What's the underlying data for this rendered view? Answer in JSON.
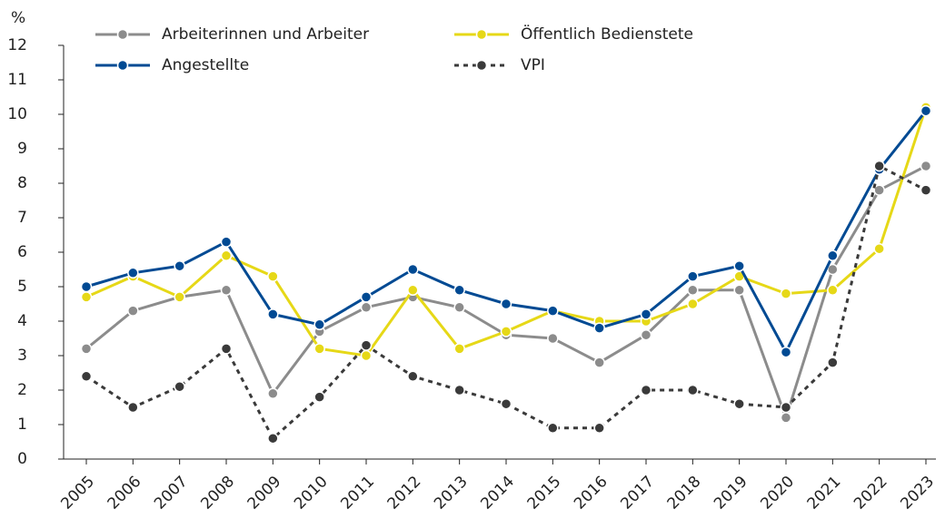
{
  "chart_data": {
    "type": "line",
    "y_unit": "%",
    "categories": [
      "2005",
      "2006",
      "2007",
      "2008",
      "2009",
      "2010",
      "2011",
      "2012",
      "2013",
      "2014",
      "2015",
      "2016",
      "2017",
      "2018",
      "2019",
      "2020",
      "2021",
      "2022",
      "2023"
    ],
    "series": [
      {
        "name": "Arbeiterinnen und Arbeiter",
        "color": "#8c8c8c",
        "dashed": false,
        "values": [
          3.2,
          4.3,
          4.7,
          4.9,
          1.9,
          3.7,
          4.4,
          4.7,
          4.4,
          3.6,
          3.5,
          2.8,
          3.6,
          4.9,
          4.9,
          1.2,
          5.5,
          7.8,
          8.5
        ]
      },
      {
        "name": "Angestellte",
        "color": "#004a93",
        "dashed": false,
        "values": [
          5.0,
          5.4,
          5.6,
          6.3,
          4.2,
          3.9,
          4.7,
          5.5,
          4.9,
          4.5,
          4.3,
          3.8,
          4.2,
          5.3,
          5.6,
          3.1,
          5.9,
          8.4,
          10.1
        ]
      },
      {
        "name": "Öffentlich Bedienstete",
        "color": "#e6d817",
        "dashed": false,
        "values": [
          4.7,
          5.3,
          4.7,
          5.9,
          5.3,
          3.2,
          3.0,
          4.9,
          3.2,
          3.7,
          4.3,
          4.0,
          4.0,
          4.5,
          5.3,
          4.8,
          4.9,
          6.1,
          10.2
        ]
      },
      {
        "name": "VPI",
        "color": "#3a3a3a",
        "dashed": true,
        "values": [
          2.4,
          1.5,
          2.1,
          3.2,
          0.6,
          1.8,
          3.3,
          2.4,
          2.0,
          1.6,
          0.9,
          0.9,
          2.0,
          2.0,
          1.6,
          1.5,
          2.8,
          8.5,
          7.8
        ]
      }
    ],
    "ylim": [
      0,
      12
    ],
    "yticks": [
      0,
      1,
      2,
      3,
      4,
      5,
      6,
      7,
      8,
      9,
      10,
      11,
      12
    ],
    "grid": false
  }
}
